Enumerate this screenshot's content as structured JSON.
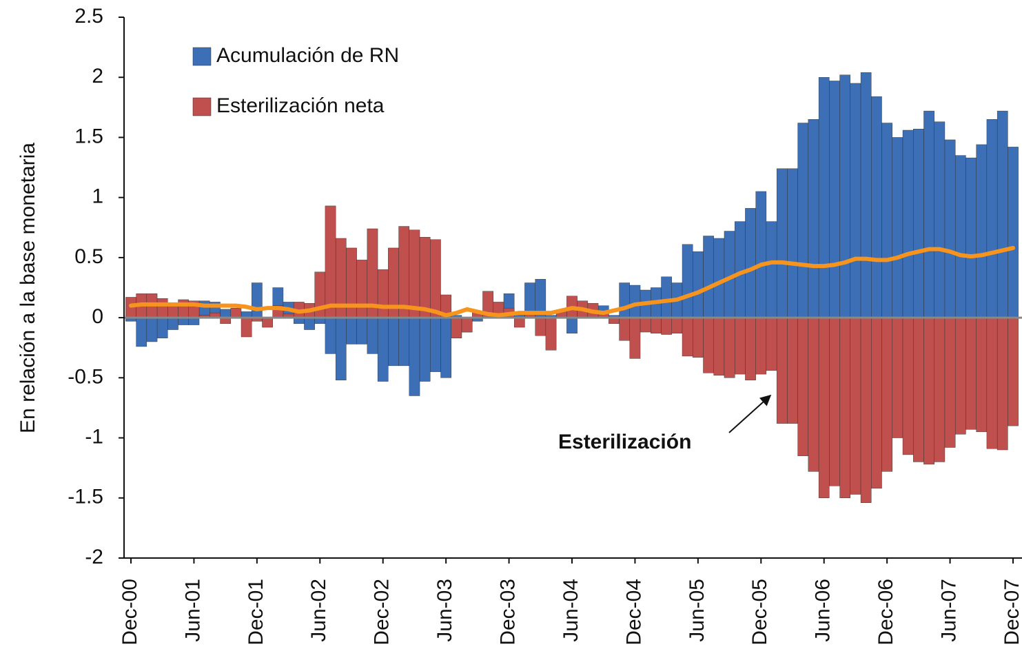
{
  "chart_data": {
    "type": "bar",
    "y_label": "En relación a la base monetaria",
    "annotation": "Esterilización",
    "categories": [
      "Dec-00",
      null,
      null,
      null,
      null,
      null,
      "Jun-01",
      null,
      null,
      null,
      null,
      null,
      "Dec-01",
      null,
      null,
      null,
      null,
      null,
      "Jun-02",
      null,
      null,
      null,
      null,
      null,
      "Dec-02",
      null,
      null,
      null,
      null,
      null,
      "Jun-03",
      null,
      null,
      null,
      null,
      null,
      "Dec-03",
      null,
      null,
      null,
      null,
      null,
      "Jun-04",
      null,
      null,
      null,
      null,
      null,
      "Dec-04",
      null,
      null,
      null,
      null,
      null,
      "Jun-05",
      null,
      null,
      null,
      null,
      null,
      "Dec-05",
      null,
      null,
      null,
      null,
      null,
      "Jun-06",
      null,
      null,
      null,
      null,
      null,
      "Dec-06",
      null,
      null,
      null,
      null,
      null,
      "Jun-07",
      null,
      null,
      null,
      null,
      null,
      "Dec-07"
    ],
    "series": [
      {
        "name": "Acumulación de RN",
        "color": "#3d6fb6",
        "values": [
          -0.03,
          -0.24,
          -0.2,
          -0.17,
          -0.1,
          -0.06,
          -0.06,
          0.14,
          0.13,
          0.07,
          0.05,
          0.05,
          0.29,
          -0.02,
          0.25,
          0.13,
          -0.05,
          -0.1,
          -0.05,
          -0.3,
          -0.52,
          -0.22,
          -0.22,
          -0.3,
          -0.53,
          -0.4,
          -0.4,
          -0.65,
          -0.53,
          -0.45,
          -0.5,
          0.02,
          -0.12,
          -0.03,
          0.02,
          0.03,
          0.2,
          0.03,
          0.29,
          0.32,
          0.02,
          0.05,
          -0.13,
          0.05,
          0.07,
          0.1,
          0.02,
          0.29,
          0.27,
          0.23,
          0.25,
          0.34,
          0.29,
          0.61,
          0.55,
          0.68,
          0.66,
          0.72,
          0.8,
          0.91,
          1.05,
          0.8,
          1.24,
          1.24,
          1.62,
          1.65,
          2.0,
          1.97,
          2.02,
          1.95,
          2.04,
          1.84,
          1.62,
          1.5,
          1.56,
          1.57,
          1.72,
          1.63,
          1.48,
          1.35,
          1.33,
          1.44,
          1.65,
          1.72,
          1.42
        ]
      },
      {
        "name": "Esterilización neta",
        "color": "#c0504d",
        "values": [
          0.17,
          0.2,
          0.2,
          0.16,
          0.1,
          0.15,
          0.14,
          0.02,
          0.04,
          -0.05,
          0.08,
          -0.16,
          -0.03,
          -0.08,
          0.1,
          0.03,
          0.13,
          0.12,
          0.38,
          0.93,
          0.66,
          0.58,
          0.48,
          0.74,
          0.4,
          0.58,
          0.76,
          0.73,
          0.67,
          0.65,
          0.19,
          -0.17,
          -0.12,
          0.05,
          0.22,
          0.13,
          0.08,
          -0.08,
          0.05,
          -0.15,
          -0.27,
          0.06,
          0.18,
          0.14,
          0.12,
          0.05,
          -0.05,
          -0.19,
          -0.34,
          -0.12,
          -0.13,
          -0.14,
          -0.13,
          -0.32,
          -0.33,
          -0.46,
          -0.48,
          -0.5,
          -0.47,
          -0.52,
          -0.47,
          -0.44,
          -0.88,
          -0.88,
          -1.15,
          -1.28,
          -1.5,
          -1.4,
          -1.5,
          -1.47,
          -1.54,
          -1.42,
          -1.28,
          -1.0,
          -1.14,
          -1.2,
          -1.22,
          -1.2,
          -1.08,
          -0.97,
          -0.93,
          -0.95,
          -1.09,
          -1.1,
          -0.9
        ]
      },
      {
        "type": "line",
        "color": "#f7941d",
        "values": [
          0.1,
          0.11,
          0.11,
          0.11,
          0.11,
          0.11,
          0.11,
          0.1,
          0.1,
          0.1,
          0.1,
          0.09,
          0.07,
          0.08,
          0.08,
          0.07,
          0.05,
          0.06,
          0.08,
          0.1,
          0.1,
          0.1,
          0.1,
          0.1,
          0.09,
          0.09,
          0.09,
          0.08,
          0.07,
          0.05,
          0.02,
          0.04,
          0.07,
          0.05,
          0.03,
          0.02,
          0.03,
          0.04,
          0.04,
          0.04,
          0.04,
          0.06,
          0.08,
          0.07,
          0.05,
          0.04,
          0.06,
          0.08,
          0.11,
          0.12,
          0.13,
          0.14,
          0.15,
          0.18,
          0.21,
          0.25,
          0.29,
          0.33,
          0.37,
          0.4,
          0.44,
          0.46,
          0.46,
          0.45,
          0.44,
          0.43,
          0.43,
          0.44,
          0.46,
          0.49,
          0.49,
          0.48,
          0.48,
          0.5,
          0.53,
          0.55,
          0.57,
          0.57,
          0.55,
          0.52,
          0.51,
          0.52,
          0.54,
          0.56,
          0.58
        ]
      }
    ],
    "ylim": [
      -2,
      2.5
    ],
    "yticks": [
      2.5,
      2,
      1.5,
      1,
      0.5,
      0,
      -0.5,
      -1,
      -1.5,
      -2
    ]
  }
}
